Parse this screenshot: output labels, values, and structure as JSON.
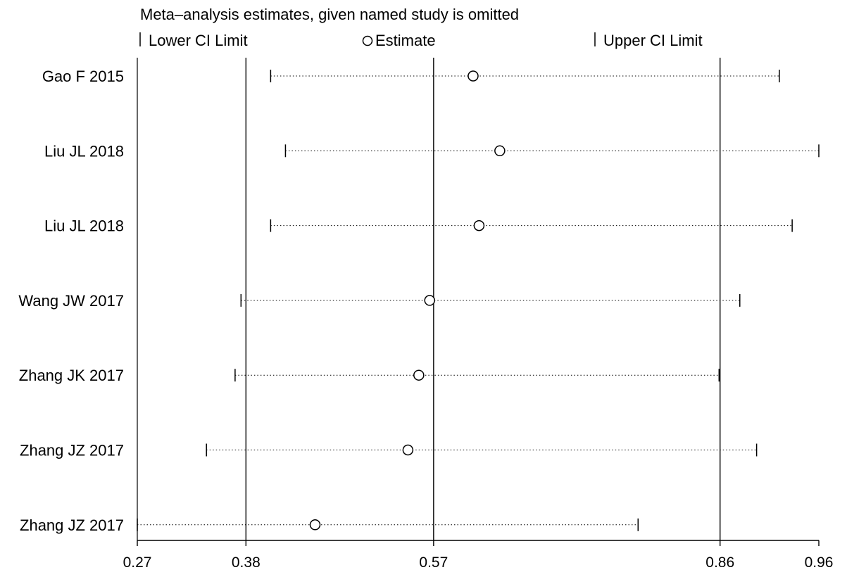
{
  "chart_data": {
    "type": "forest",
    "title": "Meta–analysis estimates, given named study is omitted",
    "legend": {
      "lower_label": "Lower CI Limit",
      "estimate_label": "Estimate",
      "upper_label": "Upper CI Limit",
      "placement": "top"
    },
    "xlim": [
      0.27,
      0.96
    ],
    "x_ticks": [
      0.27,
      0.38,
      0.57,
      0.86,
      0.96
    ],
    "x_tick_labels": [
      "0.27",
      "0.38",
      "0.57",
      "0.86",
      "0.96"
    ],
    "reference_lines": [
      0.38,
      0.57,
      0.86
    ],
    "studies": [
      {
        "label": "Gao F 2015",
        "lower": 0.405,
        "estimate": 0.61,
        "upper": 0.92
      },
      {
        "label": "Liu JL 2018",
        "lower": 0.42,
        "estimate": 0.637,
        "upper": 0.96
      },
      {
        "label": "Liu JL 2018",
        "lower": 0.405,
        "estimate": 0.616,
        "upper": 0.933
      },
      {
        "label": "Wang JW 2017",
        "lower": 0.375,
        "estimate": 0.566,
        "upper": 0.88
      },
      {
        "label": "Zhang JK 2017",
        "lower": 0.369,
        "estimate": 0.555,
        "upper": 0.859
      },
      {
        "label": "Zhang JZ 2017",
        "lower": 0.34,
        "estimate": 0.544,
        "upper": 0.897
      },
      {
        "label": "Zhang JZ 2017",
        "lower": 0.27,
        "estimate": 0.45,
        "upper": 0.777
      }
    ]
  }
}
